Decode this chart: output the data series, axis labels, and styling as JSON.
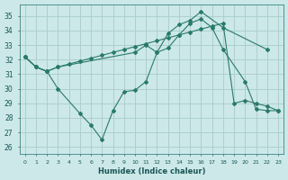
{
  "xlabel": "Humidex (Indice chaleur)",
  "line_color": "#2a7a6a",
  "bg_color": "#cce8e8",
  "grid_color": "#aacccc",
  "ylim": [
    25.5,
    35.8
  ],
  "xlim": [
    -0.5,
    23.5
  ],
  "yticks": [
    26,
    27,
    28,
    29,
    30,
    31,
    32,
    33,
    34,
    35
  ],
  "xticks": [
    0,
    1,
    2,
    3,
    4,
    5,
    6,
    7,
    8,
    9,
    10,
    11,
    12,
    13,
    14,
    15,
    16,
    17,
    18,
    19,
    20,
    21,
    22,
    23
  ],
  "s1_x": [
    0,
    1,
    2,
    3,
    10,
    11,
    12,
    13,
    14,
    15,
    16,
    18,
    22
  ],
  "s1_y": [
    32.2,
    31.5,
    31.2,
    31.5,
    32.5,
    33.0,
    32.5,
    33.8,
    34.4,
    34.7,
    35.3,
    34.2,
    32.7
  ],
  "s2_x": [
    0,
    1,
    2,
    3,
    5,
    6,
    7,
    8,
    9,
    10,
    11,
    12,
    13,
    14,
    15,
    16,
    17,
    18,
    20,
    21,
    22,
    23
  ],
  "s2_y": [
    32.2,
    31.5,
    31.2,
    30.0,
    28.3,
    27.5,
    26.5,
    28.5,
    29.8,
    29.9,
    30.5,
    32.5,
    32.8,
    33.7,
    34.5,
    34.8,
    34.2,
    32.7,
    30.5,
    28.6,
    28.5,
    28.5
  ],
  "s3_x": [
    0,
    1,
    2,
    3,
    4,
    5,
    6,
    7,
    8,
    9,
    10,
    11,
    12,
    13,
    14,
    15,
    16,
    17,
    18,
    19,
    20,
    21,
    22,
    23
  ],
  "s3_y": [
    32.2,
    31.5,
    31.2,
    31.5,
    31.7,
    31.9,
    32.1,
    32.3,
    32.5,
    32.7,
    32.9,
    33.1,
    33.3,
    33.5,
    33.7,
    33.9,
    34.1,
    34.3,
    34.5,
    29.0,
    29.2,
    29.0,
    28.8,
    28.5
  ]
}
